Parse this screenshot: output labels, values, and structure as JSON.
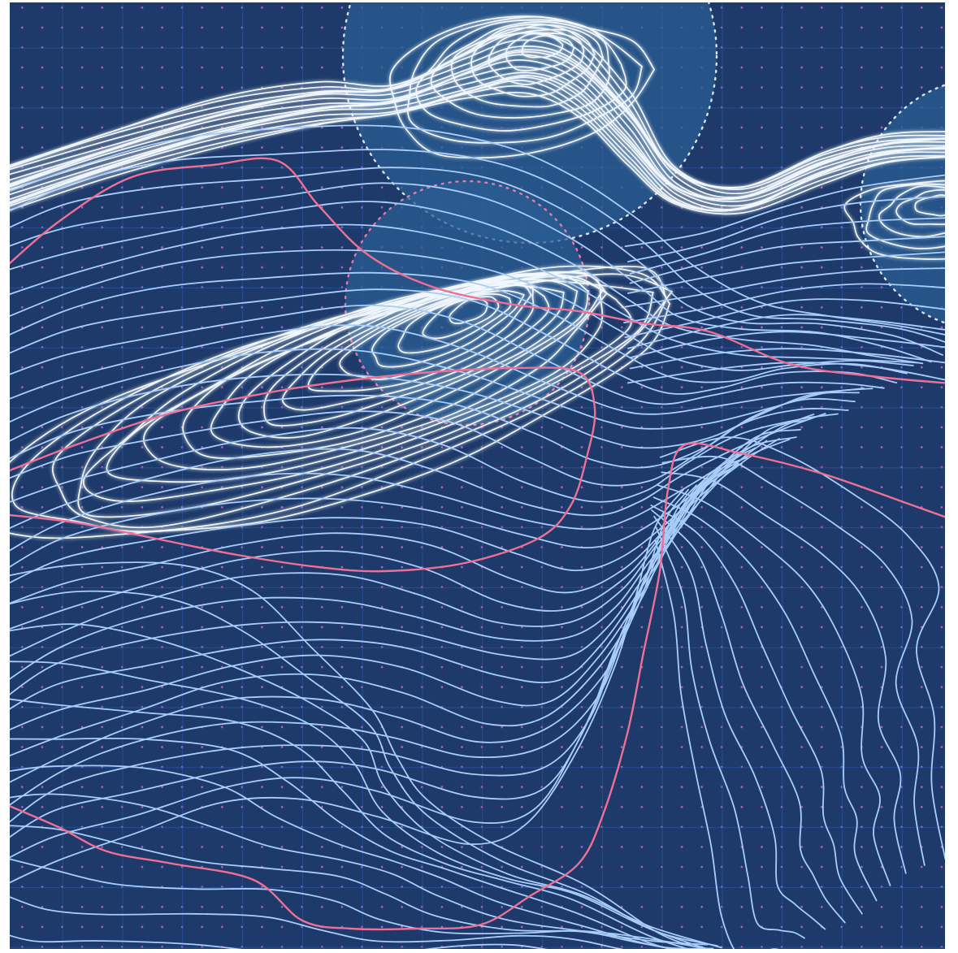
{
  "artwork": {
    "kind": "topographic-contour-illustration",
    "colors": {
      "background": "#1d3a6a",
      "grid_line": "#2d5aa6",
      "grid_dot": "#b163c9",
      "contour": "#a9cdfa",
      "contour_bright": "#f1f7ff",
      "index_contour": "#ef6f95",
      "focus_circle_fill": "#2b5d93",
      "focus_circle_ring_light": "#d6e4f2",
      "focus_circle_ring_pink": "#e27ba6"
    },
    "focus_circles": [
      {
        "name": "top-circle",
        "ring": "light"
      },
      {
        "name": "center-circle",
        "ring": "pink"
      },
      {
        "name": "right-circle",
        "ring": "light"
      }
    ],
    "contour_groups": [
      {
        "name": "top-ridge",
        "style": "bright"
      },
      {
        "name": "center-peak",
        "style": "bright"
      },
      {
        "name": "main-slope",
        "style": "normal"
      },
      {
        "name": "lower-slope",
        "style": "normal"
      },
      {
        "name": "right-drainage",
        "style": "normal"
      },
      {
        "name": "index-lines",
        "style": "index"
      }
    ]
  }
}
